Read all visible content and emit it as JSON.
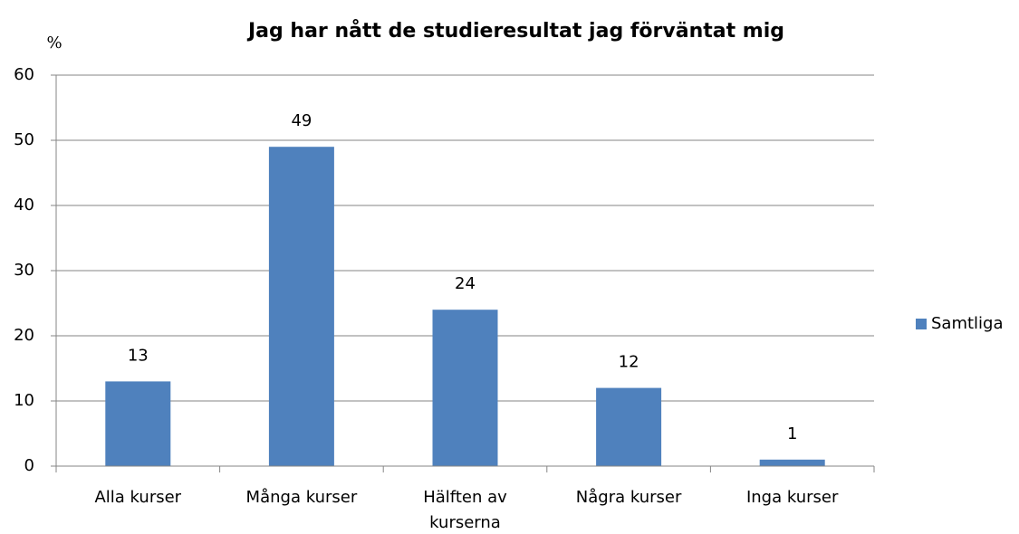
{
  "chart_data": {
    "type": "bar",
    "title": "Jag har nått de studieresultat jag förväntat mig",
    "y_label": "%",
    "categories": [
      "Alla kurser",
      "Många kurser",
      "Hälften av kurserna",
      "Några kurser",
      "Inga kurser"
    ],
    "series": [
      {
        "name": "Samtliga",
        "color": "#4f81bd",
        "values": [
          13,
          49,
          24,
          12,
          1
        ]
      }
    ],
    "ylim": [
      0,
      60
    ],
    "yticks": [
      0,
      10,
      20,
      30,
      40,
      50,
      60
    ],
    "grid": true,
    "legend": "right"
  }
}
